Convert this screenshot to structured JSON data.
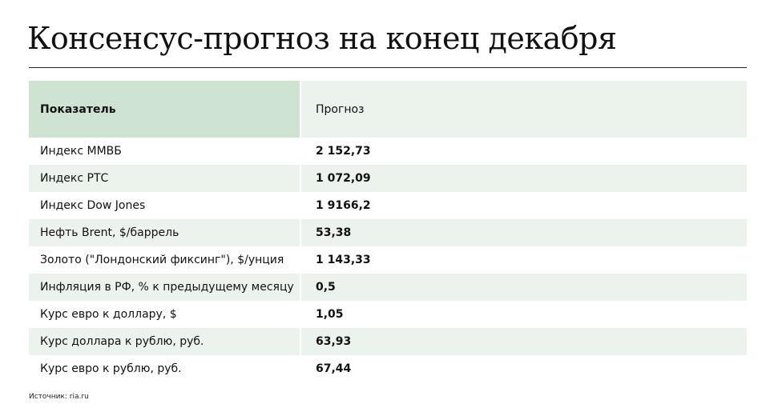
{
  "title": "Консенсус-прогноз на конец декабря",
  "table": {
    "headers": [
      "Показатель",
      "Прогноз"
    ],
    "rows": [
      {
        "label": "Индекс ММВБ",
        "value": "2 152,73"
      },
      {
        "label": "Индекс РТС",
        "value": "1 072,09"
      },
      {
        "label": "Индекс Dow Jones",
        "value": "1 9166,2"
      },
      {
        "label": "Нефть Brent, $/баррель",
        "value": "53,38"
      },
      {
        "label": "Золото (\"Лондонский фиксинг\"), $/унция",
        "value": "1 143,33"
      },
      {
        "label": "Инфляция в РФ, % к предыдущему месяцу",
        "value": "0,5"
      },
      {
        "label": "Курс евро к доллару, $",
        "value": "1,05"
      },
      {
        "label": "Курс доллара к рублю, руб.",
        "value": "63,93"
      },
      {
        "label": "Курс евро к рублю, руб.",
        "value": "67,44"
      }
    ]
  },
  "source": "Источник: ria.ru",
  "colors": {
    "header_label_bg": "#cfe3d2",
    "stripe_bg": "#ebf3ec",
    "text": "#111111"
  }
}
